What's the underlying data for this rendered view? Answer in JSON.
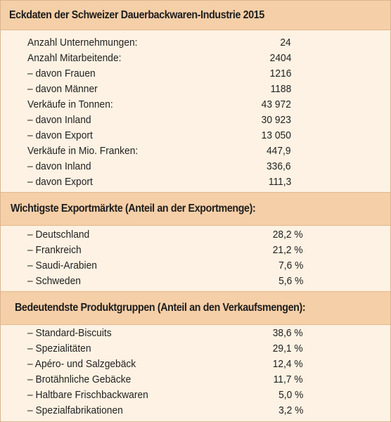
{
  "section1": {
    "title": "Eckdaten der Schweizer Dauerbackwaren-Industrie 2015",
    "rows": [
      {
        "label": "Anzahl Unternehmungen:",
        "value": "24"
      },
      {
        "label": "Anzahl Mitarbeitende:",
        "value": "2404"
      },
      {
        "label": "– davon Frauen",
        "value": "1216"
      },
      {
        "label": "– davon Männer",
        "value": "1188"
      },
      {
        "label": "Verkäufe in Tonnen:",
        "value": "43 972"
      },
      {
        "label": "– davon Inland",
        "value": "30 923"
      },
      {
        "label": "– davon Export",
        "value": "13 050"
      },
      {
        "label": "Verkäufe in Mio. Franken:",
        "value": "447,9"
      },
      {
        "label": "– davon Inland",
        "value": "336,6"
      },
      {
        "label": "– davon Export",
        "value": "111,3"
      }
    ]
  },
  "section2": {
    "title": "Wichtigste Exportmärkte (Anteil an der Exportmenge):",
    "rows": [
      {
        "label": "– Deutschland",
        "value": "28,2 %"
      },
      {
        "label": "– Frankreich",
        "value": "21,2 %"
      },
      {
        "label": "– Saudi-Arabien",
        "value": "7,6 %"
      },
      {
        "label": "– Schweden",
        "value": "5,6 %"
      }
    ]
  },
  "section3": {
    "title": "Bedeutendste Produktgruppen (Anteil an den Verkaufsmengen):",
    "rows": [
      {
        "label": "– Standard-Biscuits",
        "value": "38,6 %"
      },
      {
        "label": "– Spezialitäten",
        "value": "29,1 %"
      },
      {
        "label": "– Apéro- und Salzgebäck",
        "value": "12,4 %"
      },
      {
        "label": "– Brotähnliche Gebäcke",
        "value": "11,7 %"
      },
      {
        "label": "– Haltbare Frischbackwaren",
        "value": "5,0 %"
      },
      {
        "label": "– Spezialfabrikationen",
        "value": "3,2 %"
      }
    ]
  }
}
